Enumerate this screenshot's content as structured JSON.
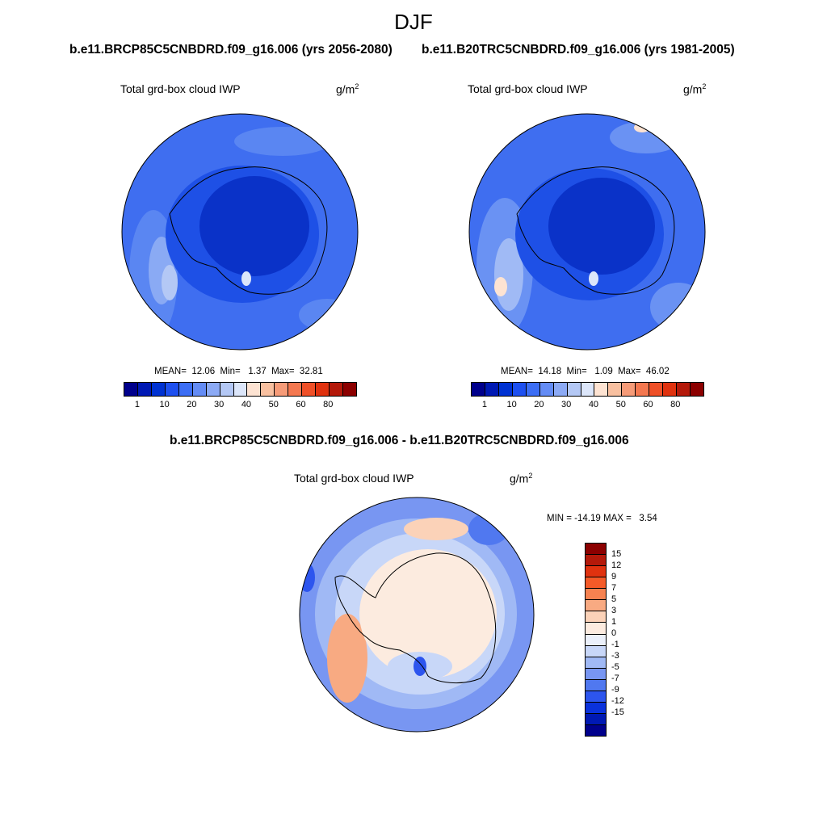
{
  "title": "DJF",
  "panels": {
    "left": {
      "header": "b.e11.BRCP85C5CNBDRD.f09_g16.006 (yrs 2056-2080)",
      "label": "Total grd-box cloud IWP",
      "units": "g/m",
      "units_exp": "2",
      "stats": "MEAN=  12.06  Min=   1.37  Max=  32.81"
    },
    "right": {
      "header": "b.e11.B20TRC5CNBDRD.f09_g16.006 (yrs 1981-2005)",
      "label": "Total grd-box cloud IWP",
      "units": "g/m",
      "units_exp": "2",
      "stats": "MEAN=  14.18  Min=   1.09  Max=  46.02"
    },
    "diff": {
      "header": "b.e11.BRCP85C5CNBDRD.f09_g16.006 - b.e11.B20TRC5CNBDRD.f09_g16.006",
      "label": "Total grd-box cloud IWP",
      "units": "g/m",
      "units_exp": "2",
      "stats": "MIN = -14.19 MAX =   3.54"
    }
  },
  "colorbar_abs": {
    "colors": [
      "#00008c",
      "#0019b4",
      "#0032d2",
      "#1e50f0",
      "#3c6ef5",
      "#648cf5",
      "#8caaf5",
      "#b4c8f5",
      "#dce6fa",
      "#fde3d2",
      "#f8c0a0",
      "#f69b78",
      "#f47850",
      "#ef5028",
      "#e0320f",
      "#b4190a",
      "#8c0000"
    ],
    "tick_labels": [
      "1",
      "10",
      "20",
      "30",
      "40",
      "50",
      "60",
      "80"
    ]
  },
  "colorbar_diff": {
    "colors": [
      "#8c0000",
      "#b4190a",
      "#e0320f",
      "#f45a28",
      "#f68250",
      "#f8aa82",
      "#fbd2b8",
      "#fcebdf",
      "#ebf0fa",
      "#c8d7f8",
      "#a0b9f5",
      "#7896f2",
      "#5078f0",
      "#2d55ee",
      "#0a32dc",
      "#0019b4",
      "#00008c"
    ],
    "tick_labels": [
      "15",
      "12",
      "9",
      "7",
      "5",
      "3",
      "1",
      "0",
      "-1",
      "-3",
      "-5",
      "-7",
      "-9",
      "-12",
      "-15"
    ]
  }
}
